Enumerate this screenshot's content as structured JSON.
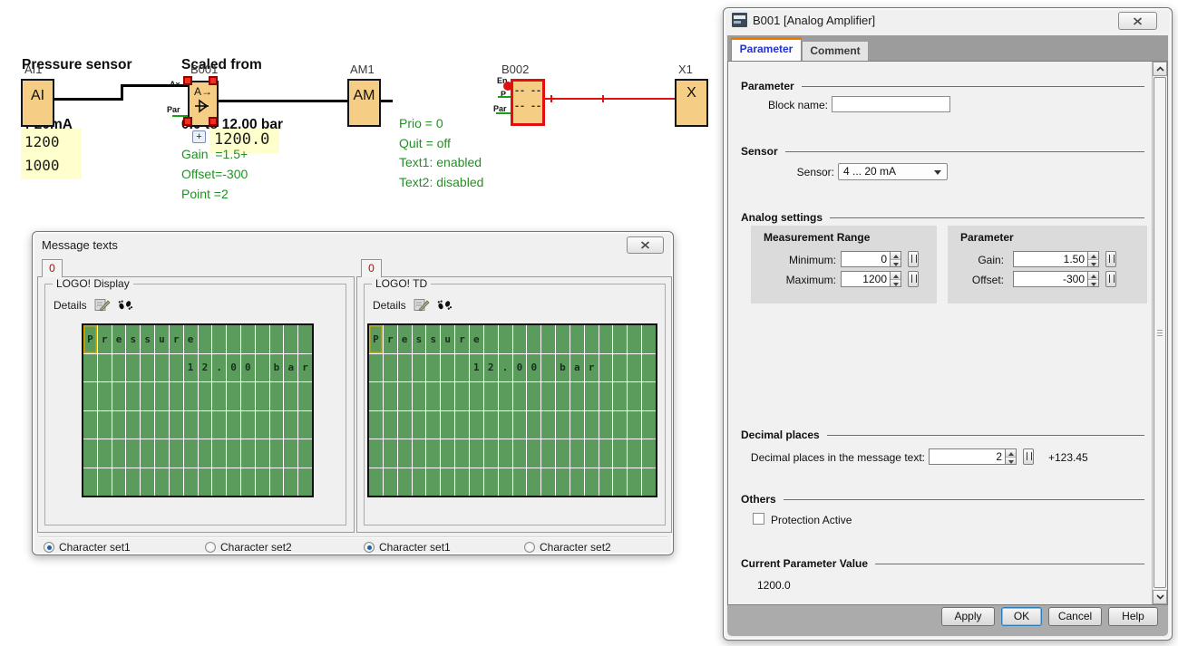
{
  "colors": {
    "block_fill": "#F5CD84",
    "selection_red": "#F23020",
    "wire_red": "#E01010",
    "comment_green": "#239023",
    "value_highlight": "#FFFFCD",
    "lcd_green": "#5B9B5B",
    "tab_accent_orange": "#F07800",
    "active_tab_text": "#2233CC",
    "tab_number_red": "#C00000"
  },
  "schematic": {
    "title1_line1": "Pressure sensor",
    "title1_line2": "4-20mA",
    "title2_line1": "Scaled from",
    "title2_line2": "0.0 to 12.00 bar",
    "ai": {
      "label": "AI1",
      "text": "AI",
      "value1": "1200",
      "value2": "1000"
    },
    "b001": {
      "label": "B001",
      "symbol_text": "A→",
      "pin_in": "Ax",
      "pin_par": "Par",
      "value": "1200.0",
      "expand": "+",
      "params": [
        "Gain  =1.5+",
        "Offset=-300",
        "Point =2"
      ]
    },
    "am": {
      "label": "AM1",
      "text": "AM"
    },
    "b002": {
      "label": "B002",
      "row1": "-- --",
      "row2": "-- --",
      "pin_en": "En",
      "pin_p": "P",
      "pin_par": "Par",
      "params": [
        "Prio = 0",
        "Quit = off",
        "Text1: enabled",
        "Text2: disabled"
      ]
    },
    "x1": {
      "label": "X1",
      "text": "X"
    }
  },
  "message_dialog": {
    "title": "Message texts",
    "panels": [
      {
        "tab": "0",
        "group": "LOGO! Display",
        "details": "Details",
        "cols": 16,
        "rows": 6,
        "lines": [
          {
            "row": 0,
            "col": 0,
            "text": "Pressure"
          },
          {
            "row": 1,
            "col": 7,
            "text": "12.00 bar"
          }
        ],
        "radios": [
          {
            "label": "Character set1",
            "selected": true
          },
          {
            "label": "Character set2",
            "selected": false
          }
        ]
      },
      {
        "tab": "0",
        "group": "LOGO! TD",
        "details": "Details",
        "cols": 20,
        "rows": 6,
        "lines": [
          {
            "row": 0,
            "col": 0,
            "text": "Pressure"
          },
          {
            "row": 1,
            "col": 7,
            "text": "12.00 bar"
          }
        ],
        "radios": [
          {
            "label": "Character set1",
            "selected": true
          },
          {
            "label": "Character set2",
            "selected": false
          }
        ]
      }
    ]
  },
  "param_dialog": {
    "title": "B001 [Analog Amplifier]",
    "tabs": [
      {
        "label": "Parameter",
        "active": true
      },
      {
        "label": "Comment",
        "active": false
      }
    ],
    "parameter_section": {
      "header": "Parameter",
      "block_name_label": "Block name:",
      "block_name_value": ""
    },
    "sensor_section": {
      "header": "Sensor",
      "label": "Sensor:",
      "value": "4 ... 20 mA"
    },
    "analog_section": {
      "header": "Analog settings",
      "measurement": {
        "title": "Measurement Range",
        "min_label": "Minimum:",
        "min_value": "0",
        "max_label": "Maximum:",
        "max_value": "1200"
      },
      "parameter": {
        "title": "Parameter",
        "gain_label": "Gain:",
        "gain_value": "1.50",
        "offset_label": "Offset:",
        "offset_value": "-300"
      }
    },
    "decimal_section": {
      "header": "Decimal places",
      "label": "Decimal places in the message text:",
      "value": "2",
      "example": "+123.45"
    },
    "others_section": {
      "header": "Others",
      "checkbox_label": "Protection Active",
      "checked": false
    },
    "current_section": {
      "header": "Current Parameter Value",
      "value": "1200.0"
    },
    "buttons": {
      "apply": "Apply",
      "ok": "OK",
      "cancel": "Cancel",
      "help": "Help"
    }
  }
}
